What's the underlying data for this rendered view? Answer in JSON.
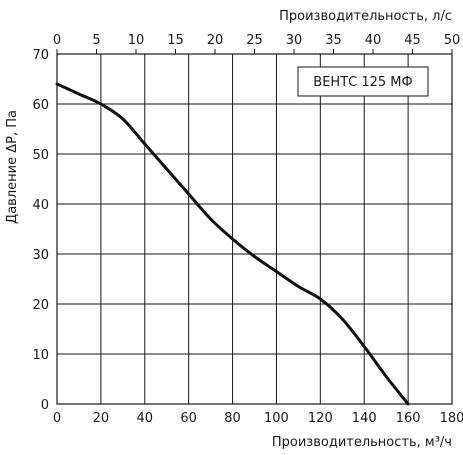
{
  "chart_data": {
    "type": "line",
    "series": [
      {
        "name": "ВЕНТС 125 МФ",
        "x": [
          0,
          10,
          20,
          30,
          40,
          50,
          60,
          70,
          80,
          90,
          100,
          110,
          120,
          130,
          140,
          150,
          160
        ],
        "y": [
          64,
          62,
          60,
          57,
          52,
          47,
          42,
          37,
          33,
          29.5,
          26.5,
          23.5,
          21,
          17,
          11.5,
          5.5,
          0
        ]
      }
    ],
    "xlabel": "Производительность, м³/ч",
    "xlim": [
      0,
      180
    ],
    "xticks": [
      0,
      20,
      40,
      60,
      80,
      100,
      120,
      140,
      160,
      180
    ],
    "x2label": "Производительность, л/с",
    "x2lim": [
      0,
      50
    ],
    "x2ticks": [
      0,
      5,
      10,
      15,
      20,
      25,
      30,
      35,
      40,
      45,
      50
    ],
    "ylabel": "Давление ΔP, Па",
    "ylim": [
      0,
      70
    ],
    "yticks": [
      0,
      10,
      20,
      30,
      40,
      50,
      60,
      70
    ],
    "grid": true,
    "legend": "top-right",
    "colors": {
      "line": "#111111",
      "grid": "#1a1a1a",
      "frame": "#1a1a1a"
    }
  }
}
